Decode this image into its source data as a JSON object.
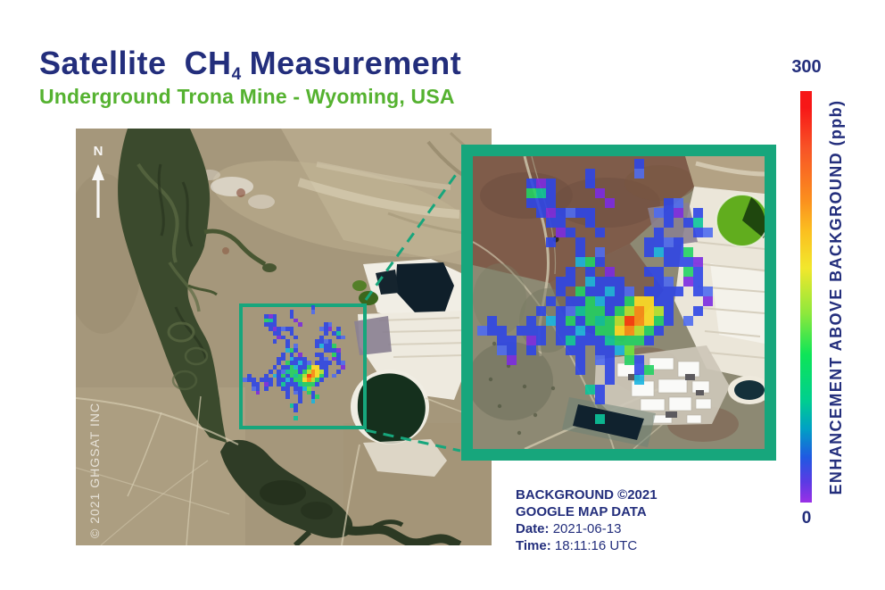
{
  "header": {
    "title_word1": "Satellite",
    "title_word2": "CH",
    "title_sub": "4",
    "title_word3": "Measurement",
    "subtitle": "Underground Trona Mine - Wyoming, USA"
  },
  "main_map": {
    "north_label": "N",
    "watermark": "© 2021 GHGSAT INC"
  },
  "colorbar": {
    "max_label": "300",
    "min_label": "0",
    "axis_label": "ENHANCEMENT ABOVE BACKGROUND (ppb)",
    "min": 0,
    "max": 300,
    "unit": "ppb",
    "gradient_stops_bottom_to_top": [
      "#9a30e6",
      "#5b3ae4",
      "#2059e2",
      "#00a1c4",
      "#00cf8e",
      "#0ee557",
      "#8ee83c",
      "#f2e72c",
      "#fbbf20",
      "#fb8c1e",
      "#f85426",
      "#f71717"
    ]
  },
  "credits": {
    "line1": "BACKGROUND ©2021",
    "line2": "GOOGLE MAP DATA",
    "date_label": "Date:",
    "date_value": "2021-06-13",
    "time_label": "Time:",
    "time_value": "18:11:16 UTC"
  },
  "colors": {
    "accent_green": "#17a67c",
    "navy": "#232e7c",
    "subtitle_green": "#55b230"
  },
  "plume": {
    "cell_inset": 11,
    "cell_mini": 4.77,
    "offset_inset": [
      5,
      3
    ],
    "offset_mini": [
      2.2,
      1.3
    ],
    "palette": {
      "P": "#7c2be0",
      "B": "#2f46e6",
      "b": "#4f6cf0",
      "C": "#19b4e0",
      "T": "#0cc49a",
      "G": "#23d163",
      "g": "#6ee63c",
      "Y": "#b8e52e",
      "y": "#ffdf25",
      "O": "#ff9013",
      "R": "#ff3e0a"
    },
    "rows": [
      "................B.............",
      "...........B....b.............",
      ".....BPB...B..................",
      ".....GTB....P.................",
      ".....BBB.....P.....Bb.........",
      "......BPBbBB......bBP.B.......",
      ".......BB..B.......B.BT.......",
      "........PB..B.....B...Bb......",
      ".......B..B......BBbB.........",
      "..........B.b....BCBBG........",
      "..........CGB......BBBP.......",
      ".........B.B.P...BB..GB.......",
      "........BB.CBBB...Bb.PB.......",
      "........B.GBBCBb.BBBB.Bb......",
      ".......B.BBGCBBGyyBB...P......",
      "......B.BbTGGBGYOyYB..B.......",
      ".B...B.CBGBGTGYROyGB.b........",
      "bBB.BBB.BBCBGGyOYGB...........",
      "..BB.PB.BTBBBTGGGB............",
      "..bB.B...BB.BBCg..............",
      "...P......B.bB.GB.............",
      "..........B..B..BG............",
      ".............B..C.............",
      "...........TB.................",
      "............B.................",
      "..............................",
      "............T................."
    ]
  }
}
